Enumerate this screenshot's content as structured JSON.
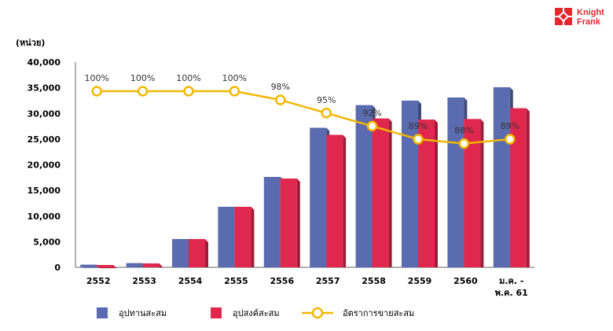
{
  "brand": {
    "line1": "Knight",
    "line2": "Frank",
    "color": "#e2272f"
  },
  "chart_data": {
    "type": "bar",
    "unit_label": "(หน่วย)",
    "categories": [
      "2552",
      "2553",
      "2554",
      "2555",
      "2556",
      "2557",
      "2558",
      "2559",
      "2560",
      [
        "ม.ค. -",
        "พ.ค. 61"
      ]
    ],
    "ylim": [
      0,
      40000
    ],
    "yticks": [
      "0",
      "5,000",
      "10,000",
      "15,000",
      "20,000",
      "25,000",
      "30,000",
      "35,000",
      "40,000"
    ],
    "ytick_values": [
      0,
      5000,
      10000,
      15000,
      20000,
      25000,
      30000,
      35000,
      40000
    ],
    "series": [
      {
        "name": "อุปทานสะสม",
        "type": "bar",
        "color": "#5b6baf",
        "values": [
          500,
          800,
          5500,
          11800,
          17600,
          27200,
          31600,
          32500,
          33100,
          35100
        ]
      },
      {
        "name": "อุปสงค์สะสม",
        "type": "bar",
        "color": "#e0284f",
        "values": [
          450,
          750,
          5500,
          11800,
          17300,
          25800,
          29000,
          28800,
          28900,
          31000
        ]
      },
      {
        "name": "อัตราการขายสะสม",
        "type": "line",
        "color": "#f2b705",
        "values": [
          100,
          100,
          100,
          100,
          98,
          95,
          92,
          89,
          88,
          89
        ],
        "labels": [
          "100%",
          "100%",
          "100%",
          "100%",
          "98%",
          "95%",
          "92%",
          "89%",
          "88%",
          "89%"
        ]
      }
    ],
    "grid": false,
    "legend_position": "bottom"
  }
}
